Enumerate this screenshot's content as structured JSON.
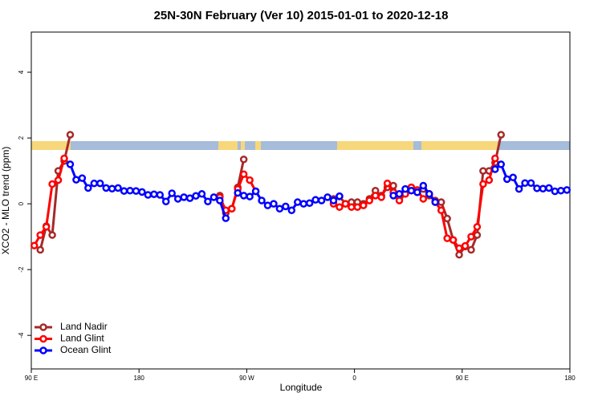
{
  "chart_data": {
    "type": "line",
    "title": "25N-30N February (Ver 10)   2015-01-01 to 2020-12-18",
    "x_label": "Longitude",
    "y_label": "XCO2 - MLO trend (ppm)",
    "x": [
      92.5,
      97.5,
      102.5,
      107.5,
      112.5,
      117.5,
      122.5,
      127.5,
      132.5,
      137.5,
      142.5,
      147.5,
      152.5,
      157.5,
      162.5,
      167.5,
      172.5,
      177.5,
      182.5,
      187.5,
      192.5,
      197.5,
      202.5,
      207.5,
      212.5,
      217.5,
      222.5,
      227.5,
      232.5,
      237.5,
      242.5,
      247.5,
      252.5,
      257.5,
      262.5,
      267.5,
      272.5,
      277.5,
      282.5,
      287.5,
      292.5,
      297.5,
      302.5,
      307.5,
      312.5,
      317.5,
      322.5,
      327.5,
      332.5,
      337.5,
      342.5,
      347.5,
      352.5,
      357.5,
      362.5,
      367.5,
      372.5,
      377.5,
      382.5,
      387.5,
      392.5,
      397.5,
      402.5,
      407.5,
      412.5,
      417.5,
      422.5,
      427.5,
      432.5,
      437.5,
      442.5,
      447.5,
      452.5,
      457.5,
      462.5,
      467.5,
      472.5,
      477.5,
      482.5,
      487.5,
      492.5,
      497.5,
      502.5,
      507.5,
      512.5,
      517.5,
      522.5,
      527.5,
      532.5,
      537.5
    ],
    "series": [
      {
        "name": "Land Nadir",
        "color": "#a52a2a",
        "values": [
          null,
          -1.4,
          -0.68,
          -0.95,
          1.0,
          1.3,
          2.1,
          null,
          null,
          null,
          null,
          null,
          null,
          null,
          null,
          null,
          null,
          null,
          null,
          null,
          null,
          null,
          null,
          null,
          null,
          null,
          null,
          null,
          null,
          null,
          null,
          0.25,
          -0.28,
          -0.15,
          0.5,
          1.35,
          null,
          null,
          null,
          null,
          null,
          null,
          null,
          null,
          null,
          null,
          null,
          null,
          null,
          null,
          0.15,
          0.22,
          0.0,
          0.05,
          0.05,
          0.0,
          0.15,
          0.4,
          0.25,
          0.5,
          0.55,
          0.15,
          0.3,
          0.5,
          0.35,
          0.45,
          0.25,
          0.1,
          0.05,
          -0.45,
          -1.1,
          -1.55,
          -1.3,
          -1.4,
          -0.95,
          1.0,
          1.0,
          1.25,
          2.1,
          null,
          null,
          null,
          null,
          null,
          null,
          null,
          null,
          null,
          null,
          null
        ]
      },
      {
        "name": "Land Glint",
        "color": "#ff0000",
        "values": [
          -1.27,
          -0.95,
          -0.7,
          0.6,
          0.72,
          1.38,
          null,
          null,
          null,
          null,
          null,
          null,
          null,
          null,
          null,
          null,
          null,
          null,
          null,
          null,
          null,
          null,
          null,
          null,
          null,
          null,
          null,
          null,
          null,
          null,
          null,
          0.2,
          -0.2,
          -0.15,
          0.45,
          0.9,
          0.72,
          0.38,
          null,
          null,
          null,
          null,
          null,
          null,
          null,
          null,
          null,
          null,
          null,
          null,
          0.0,
          -0.1,
          0.0,
          -0.1,
          -0.1,
          -0.05,
          0.1,
          0.25,
          0.2,
          0.62,
          0.35,
          0.1,
          0.3,
          0.5,
          0.42,
          0.15,
          0.3,
          0.05,
          -0.2,
          -1.05,
          -1.1,
          -1.35,
          -1.28,
          -1.0,
          -0.7,
          0.6,
          0.72,
          1.38,
          null,
          null,
          null,
          null,
          null,
          null,
          null,
          null,
          null,
          null,
          null,
          null
        ]
      },
      {
        "name": "Ocean Glint",
        "color": "#0000ff",
        "values": [
          null,
          null,
          null,
          null,
          null,
          null,
          1.2,
          0.73,
          0.78,
          0.48,
          0.62,
          0.62,
          0.48,
          0.46,
          0.48,
          0.39,
          0.4,
          0.39,
          0.36,
          0.27,
          0.29,
          0.27,
          0.07,
          0.32,
          0.15,
          0.2,
          0.17,
          0.24,
          0.3,
          0.07,
          0.2,
          0.1,
          -0.44,
          null,
          0.33,
          0.25,
          0.22,
          0.38,
          0.1,
          -0.05,
          0.0,
          -0.15,
          -0.08,
          -0.2,
          0.05,
          0.0,
          0.02,
          0.12,
          0.1,
          0.2,
          0.1,
          0.23,
          null,
          null,
          null,
          null,
          null,
          null,
          null,
          null,
          0.25,
          0.3,
          0.45,
          0.4,
          0.35,
          0.55,
          0.3,
          0.05,
          null,
          null,
          null,
          null,
          null,
          null,
          null,
          null,
          null,
          1.05,
          1.2,
          0.75,
          0.8,
          0.45,
          0.63,
          0.63,
          0.47,
          0.46,
          0.48,
          0.38,
          0.4,
          0.42
        ]
      }
    ],
    "xlim": [
      90,
      540
    ],
    "xticks": [
      {
        "value": 90,
        "label": "90 E"
      },
      {
        "value": 180,
        "label": "180"
      },
      {
        "value": 270,
        "label": "90 W"
      },
      {
        "value": 360,
        "label": "0"
      },
      {
        "value": 450,
        "label": "90 E"
      },
      {
        "value": 540,
        "label": "180"
      }
    ],
    "ylim": [
      -5.02,
      5.22
    ],
    "yticks": [
      -4,
      -2,
      0,
      2,
      4
    ],
    "legend": "bottom-left"
  }
}
